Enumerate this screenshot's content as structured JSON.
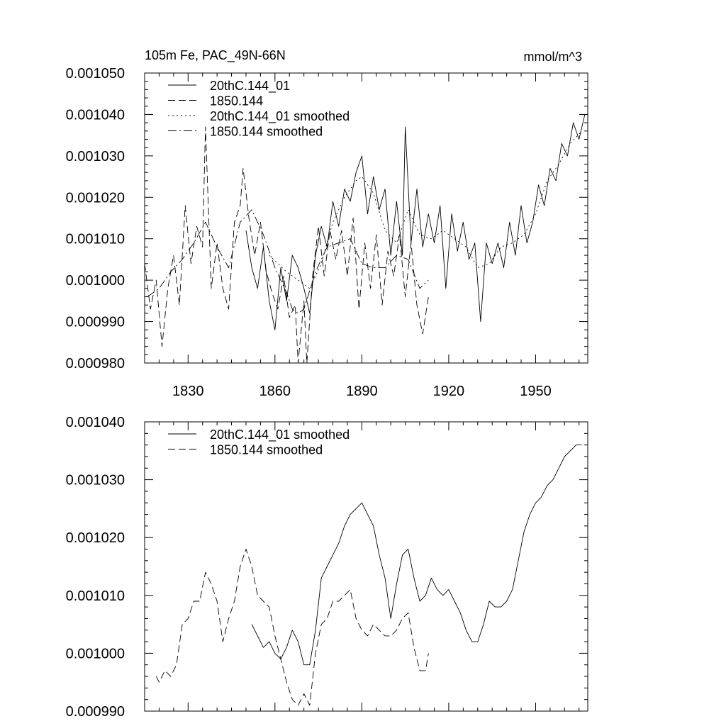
{
  "chart_data": [
    {
      "type": "line",
      "title": "105m Fe, PAC_49N-66N",
      "units": "mmol/m^3",
      "xlim": [
        1815,
        1968
      ],
      "ylim": [
        0.00098,
        0.00105
      ],
      "x_ticks": [
        1830,
        1860,
        1890,
        1920,
        1950
      ],
      "y_ticks": [
        "0.000980",
        "0.000990",
        "0.001000",
        "0.001010",
        "0.001020",
        "0.001030",
        "0.001040",
        "0.001050"
      ],
      "legend_position": "top-left",
      "series": [
        {
          "name": "20thC.144_01",
          "style": "solid",
          "x": [
            1850,
            1852,
            1854,
            1856,
            1858,
            1860,
            1862,
            1864,
            1866,
            1868,
            1870,
            1872,
            1874,
            1876,
            1878,
            1880,
            1882,
            1884,
            1886,
            1888,
            1890,
            1892,
            1894,
            1896,
            1898,
            1900,
            1902,
            1904,
            1905,
            1907,
            1909,
            1911,
            1913,
            1915,
            1917,
            1919,
            1921,
            1923,
            1925,
            1927,
            1929,
            1931,
            1933,
            1935,
            1937,
            1939,
            1941,
            1943,
            1945,
            1947,
            1949,
            1951,
            1953,
            1955,
            1957,
            1959,
            1961,
            1963,
            1965,
            1967
          ],
          "values": [
            0.001012,
            0.001003,
            0.000998,
            0.001008,
            0.000995,
            0.000988,
            0.001003,
            0.000995,
            0.001006,
            0.001003,
            0.000998,
            0.000992,
            0.001006,
            0.001013,
            0.001008,
            0.001019,
            0.001013,
            0.001022,
            0.001019,
            0.001026,
            0.00103,
            0.001016,
            0.001025,
            0.001017,
            0.001022,
            0.001006,
            0.001019,
            0.001006,
            0.001037,
            0.001009,
            0.001022,
            0.001008,
            0.001016,
            0.001009,
            0.001018,
            0.000998,
            0.001016,
            0.001007,
            0.001014,
            0.001005,
            0.001009,
            0.00099,
            0.001009,
            0.001004,
            0.001009,
            0.001003,
            0.001014,
            0.001006,
            0.001018,
            0.001009,
            0.001014,
            0.001023,
            0.001018,
            0.001027,
            0.001024,
            0.001033,
            0.00103,
            0.001038,
            0.001034,
            0.00104
          ]
        },
        {
          "name": "1850.144",
          "style": "dashed",
          "x": [
            1815,
            1817,
            1819,
            1821,
            1823,
            1825,
            1827,
            1829,
            1831,
            1833,
            1835,
            1836,
            1838,
            1840,
            1842,
            1844,
            1846,
            1848,
            1849,
            1851,
            1853,
            1855,
            1857,
            1859,
            1861,
            1863,
            1865,
            1867,
            1868,
            1870,
            1871,
            1873,
            1875,
            1877,
            1879,
            1881,
            1883,
            1885,
            1887,
            1889,
            1891,
            1893,
            1895,
            1897,
            1899,
            1901,
            1903,
            1905,
            1907,
            1909,
            1911,
            1913
          ],
          "values": [
            0.001004,
            0.000993,
            0.001,
            0.000984,
            0.000998,
            0.001006,
            0.000994,
            0.001018,
            0.001004,
            0.001013,
            0.001008,
            0.001037,
            0.000998,
            0.001009,
            0.000998,
            0.000993,
            0.001014,
            0.001018,
            0.001027,
            0.001015,
            0.001006,
            0.001014,
            0.001002,
            0.000997,
            0.000993,
            0.001001,
            0.000991,
            0.000994,
            0.00098,
            0.000995,
            0.00098,
            0.001001,
            0.001013,
            0.001001,
            0.001012,
            0.001005,
            0.001012,
            0.001001,
            0.001015,
            0.000993,
            0.001009,
            0.000998,
            0.001011,
            0.000994,
            0.001007,
            0.001001,
            0.001011,
            0.000996,
            0.001009,
            0.000994,
            0.000987,
            0.000996
          ]
        },
        {
          "name": "20thC.144_01 smoothed",
          "style": "dotted",
          "x": [
            1858,
            1864,
            1868,
            1872,
            1876,
            1880,
            1884,
            1888,
            1890,
            1894,
            1898,
            1902,
            1906,
            1910,
            1914,
            1918,
            1922,
            1926,
            1930,
            1934,
            1938,
            1942,
            1946,
            1950,
            1954,
            1958,
            1962,
            1966
          ],
          "values": [
            0.001006,
            0.001002,
            0.001,
            0.000998,
            0.001004,
            0.001014,
            0.00102,
            0.001024,
            0.001025,
            0.001021,
            0.001012,
            0.001009,
            0.001017,
            0.001011,
            0.00101,
            0.001012,
            0.00101,
            0.001008,
            0.001003,
            0.001004,
            0.001008,
            0.001009,
            0.001011,
            0.001016,
            0.001024,
            0.001028,
            0.001033,
            0.001036
          ]
        },
        {
          "name": "1850.144 smoothed",
          "style": "dashdot",
          "x": [
            1816,
            1820,
            1824,
            1828,
            1832,
            1836,
            1840,
            1844,
            1848,
            1852,
            1856,
            1860,
            1864,
            1866,
            1868,
            1870,
            1874,
            1878,
            1882,
            1886,
            1890,
            1894,
            1898,
            1902,
            1906,
            1910,
            1913
          ],
          "values": [
            0.000996,
            0.000998,
            0.001002,
            0.001005,
            0.001009,
            0.001014,
            0.001008,
            0.001003,
            0.001014,
            0.001017,
            0.001011,
            0.001003,
            0.000997,
            0.000993,
            0.000992,
            0.000993,
            0.001002,
            0.001008,
            0.001009,
            0.00101,
            0.001004,
            0.001003,
            0.001003,
            0.001006,
            0.001005,
            0.000998,
            0.001
          ]
        }
      ]
    },
    {
      "type": "line",
      "xlim": [
        1815,
        1968
      ],
      "ylim": [
        0.00099,
        0.00104
      ],
      "x_ticks": [
        1830,
        1860,
        1890,
        1920,
        1950
      ],
      "y_ticks": [
        "0.000990",
        "0.001000",
        "0.001010",
        "0.001020",
        "0.001030",
        "0.001040"
      ],
      "legend_position": "top-left",
      "series": [
        {
          "name": "20thC.144_01 smoothed",
          "style": "solid",
          "x": [
            1852,
            1854,
            1856,
            1858,
            1860,
            1862,
            1864,
            1866,
            1868,
            1870,
            1872,
            1874,
            1876,
            1878,
            1880,
            1882,
            1884,
            1886,
            1888,
            1890,
            1892,
            1894,
            1896,
            1898,
            1900,
            1902,
            1904,
            1906,
            1908,
            1910,
            1912,
            1914,
            1916,
            1918,
            1920,
            1922,
            1924,
            1926,
            1928,
            1930,
            1932,
            1934,
            1936,
            1938,
            1940,
            1942,
            1944,
            1946,
            1948,
            1950,
            1952,
            1954,
            1956,
            1958,
            1960,
            1962,
            1964,
            1966
          ],
          "values": [
            0.001005,
            0.001003,
            0.001001,
            0.001002,
            0.001,
            0.000999,
            0.001001,
            0.001004,
            0.001002,
            0.000998,
            0.000998,
            0.001004,
            0.001013,
            0.001015,
            0.001017,
            0.001019,
            0.001022,
            0.001024,
            0.001025,
            0.001026,
            0.001024,
            0.001022,
            0.001017,
            0.001013,
            0.001006,
            0.001012,
            0.001017,
            0.001018,
            0.001013,
            0.001009,
            0.00101,
            0.001013,
            0.001011,
            0.00101,
            0.001011,
            0.001009,
            0.001007,
            0.001004,
            0.001002,
            0.001002,
            0.001005,
            0.001009,
            0.001008,
            0.001008,
            0.001009,
            0.001011,
            0.001016,
            0.001021,
            0.001024,
            0.001026,
            0.001027,
            0.001029,
            0.00103,
            0.001032,
            0.001034,
            0.001035,
            0.001036,
            0.001036
          ]
        },
        {
          "name": "1850.144 smoothed",
          "style": "dashed",
          "x": [
            1819,
            1820,
            1822,
            1824,
            1826,
            1828,
            1830,
            1832,
            1834,
            1836,
            1838,
            1840,
            1842,
            1844,
            1846,
            1848,
            1850,
            1852,
            1854,
            1856,
            1858,
            1860,
            1862,
            1864,
            1866,
            1868,
            1870,
            1872,
            1874,
            1876,
            1878,
            1880,
            1882,
            1884,
            1886,
            1888,
            1890,
            1892,
            1894,
            1896,
            1898,
            1900,
            1902,
            1904,
            1906,
            1908,
            1910,
            1912,
            1913
          ],
          "values": [
            0.000996,
            0.000995,
            0.000997,
            0.000996,
            0.000998,
            0.001005,
            0.001006,
            0.001009,
            0.001009,
            0.001014,
            0.001012,
            0.001009,
            0.001002,
            0.001006,
            0.001009,
            0.001015,
            0.001018,
            0.001015,
            0.00101,
            0.001009,
            0.001008,
            0.001003,
            0.000999,
            0.000995,
            0.000992,
            0.000991,
            0.000993,
            0.000991,
            0.001,
            0.001005,
            0.001006,
            0.001009,
            0.001009,
            0.00101,
            0.001011,
            0.001006,
            0.001004,
            0.001003,
            0.001005,
            0.001004,
            0.001003,
            0.001003,
            0.001004,
            0.001006,
            0.001007,
            0.001001,
            0.000997,
            0.000997,
            0.001
          ]
        }
      ]
    }
  ]
}
